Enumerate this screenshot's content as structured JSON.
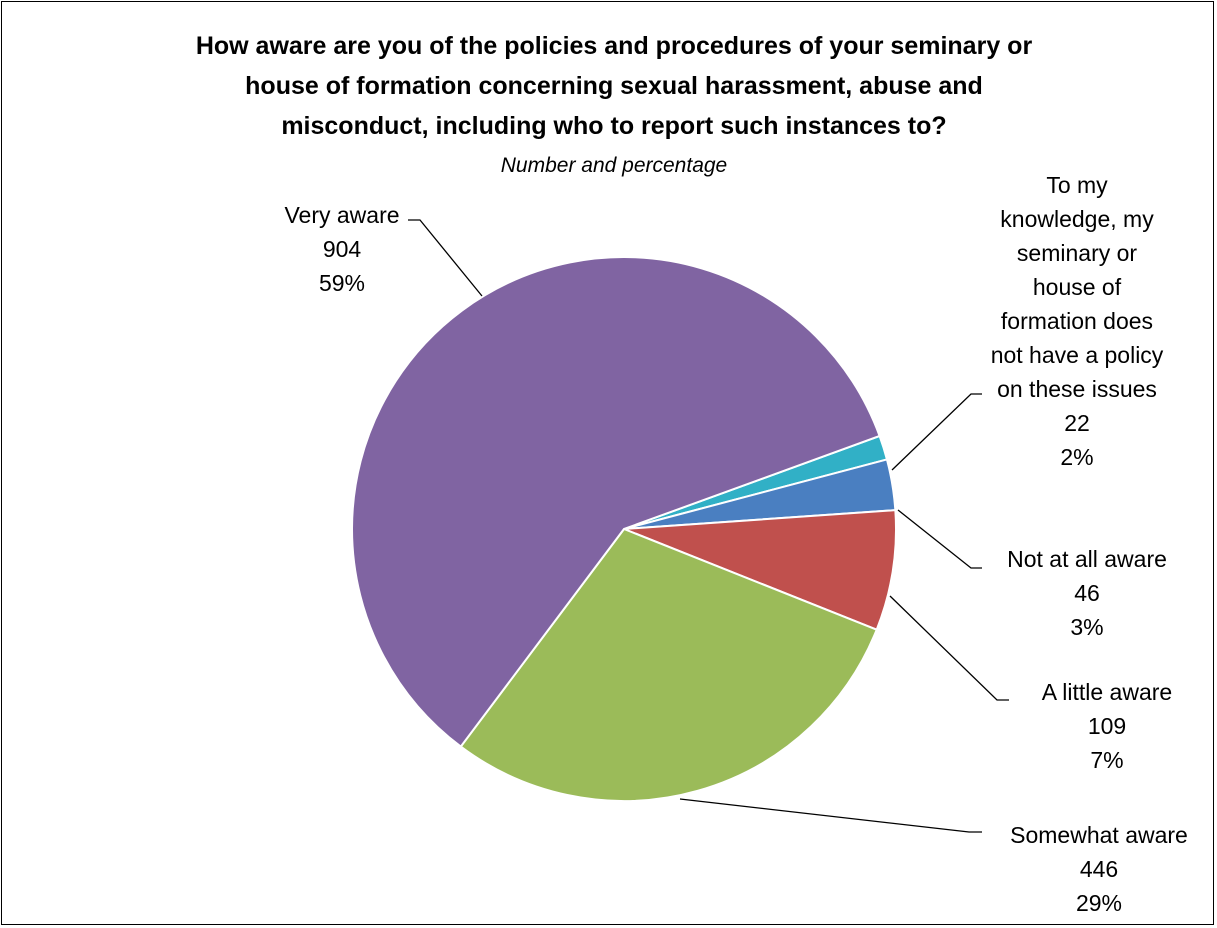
{
  "chart_data": {
    "type": "pie",
    "title_lines": [
      "How aware are you of the policies and procedures of your seminary or",
      "house of formation concerning sexual harassment, abuse and",
      "misconduct, including who to report such instances to?"
    ],
    "subtitle": "Number and percentage",
    "slices": [
      {
        "label_lines": [
          "To my",
          "knowledge, my",
          "seminary or",
          "house of",
          "formation does",
          "not have a policy",
          "on these issues"
        ],
        "count": "22",
        "percent": "2%",
        "value": 22,
        "color": "#31B0C6"
      },
      {
        "label_lines": [
          "Not at all aware"
        ],
        "count": "46",
        "percent": "3%",
        "value": 46,
        "color": "#4A7FC1"
      },
      {
        "label_lines": [
          "A little aware"
        ],
        "count": "109",
        "percent": "7%",
        "value": 109,
        "color": "#C0504D"
      },
      {
        "label_lines": [
          "Somewhat aware"
        ],
        "count": "446",
        "percent": "29%",
        "value": 446,
        "color": "#9BBB59"
      },
      {
        "label_lines": [
          "Very aware"
        ],
        "count": "904",
        "percent": "59%",
        "value": 904,
        "color": "#8064A2"
      }
    ]
  }
}
